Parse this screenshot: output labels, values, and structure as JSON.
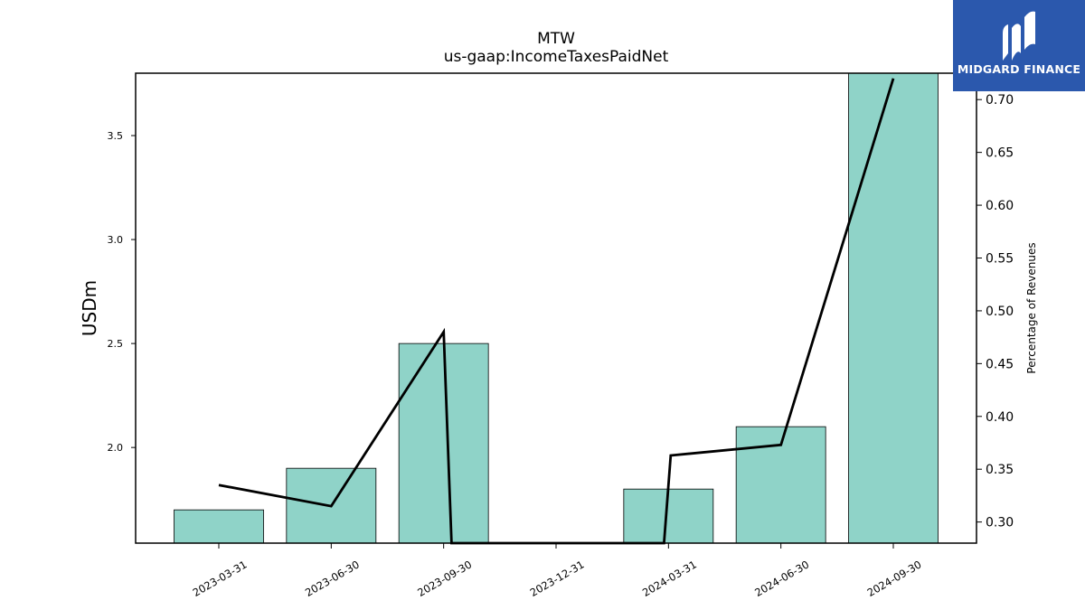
{
  "chart_data": {
    "type": "bar",
    "title": "MTW",
    "subtitle": "us-gaap:IncomeTaxesPaidNet",
    "ylabel": "USDm",
    "y2label": "Percentage of Revenues",
    "categories": [
      "2023-03-31",
      "2023-06-30",
      "2023-09-30",
      "2023-12-31",
      "2024-03-31",
      "2024-06-30",
      "2024-09-30"
    ],
    "series": [
      {
        "name": "",
        "axis": "left",
        "type": "bar",
        "values": [
          1.7,
          1.9,
          2.5,
          null,
          1.8,
          2.1,
          3.8
        ]
      },
      {
        "name": "",
        "axis": "right",
        "type": "line",
        "x": [
          0,
          1,
          2,
          2.07,
          3.96,
          4.02,
          5,
          6
        ],
        "values": [
          0.335,
          0.315,
          0.48,
          0.28,
          0.28,
          0.363,
          0.373,
          0.72
        ]
      }
    ],
    "ylim": [
      1.54,
      3.8
    ],
    "y2lim": [
      0.28,
      0.725
    ],
    "yticks": [
      "2.0",
      "2.5",
      "3.0",
      "3.5"
    ],
    "y2ticks": [
      "0.30",
      "0.35",
      "0.40",
      "0.45",
      "0.50",
      "0.55",
      "0.60",
      "0.65",
      "0.70"
    ],
    "grid": false,
    "colors": {
      "bar": "#8fd3c8",
      "bar_edge": "#000000",
      "line": "#000000"
    }
  },
  "logo": {
    "text": "MIDGARD FINANCE",
    "background": "#2b58ad"
  }
}
